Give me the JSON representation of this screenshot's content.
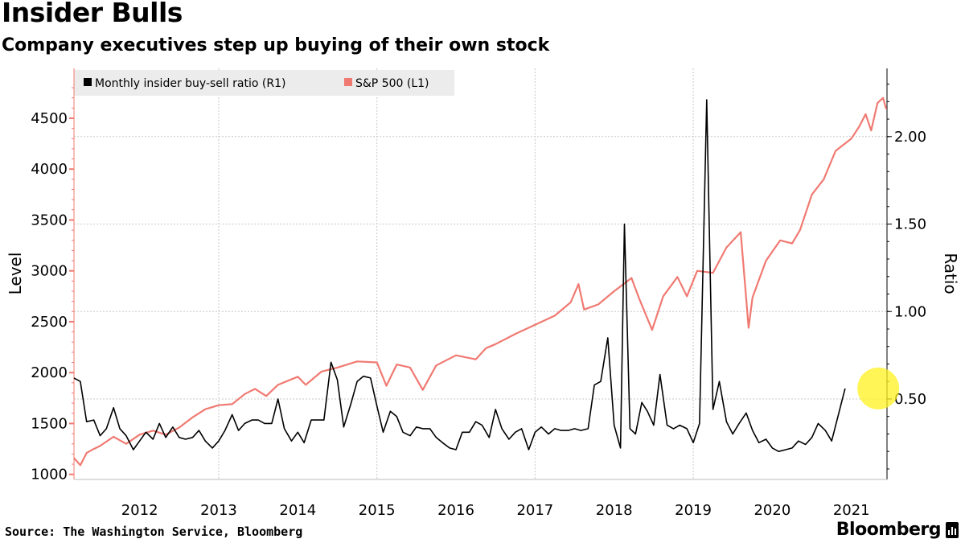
{
  "title": "Insider Bulls",
  "subtitle": "Company executives step up buying of their own stock",
  "source": "Source: The Washington Service, Bloomberg",
  "brand": "Bloomberg",
  "brand_icon": "bloomberg-terminal-icon",
  "colors": {
    "sp500": "#f07a72",
    "ratio": "#000000",
    "grid": "#c8c8c8",
    "highlight": "#fff21e",
    "legend_bg": "#ececec"
  },
  "chart_data": {
    "type": "line",
    "title": "Insider Bulls",
    "ylabel_left": "Level",
    "ylabel_right": "Ratio",
    "yleft_ticks": [
      "1000",
      "1500",
      "2000",
      "2500",
      "3000",
      "3500",
      "4000",
      "4500"
    ],
    "yleft_range": [
      950,
      4990
    ],
    "yright_ticks": [
      "0.50",
      "1.00",
      "1.50",
      "2.00"
    ],
    "yright_range": [
      0.04,
      2.39
    ],
    "x_labels": [
      "2012",
      "2013",
      "2014",
      "2015",
      "2016",
      "2017",
      "2018",
      "2019",
      "2020",
      "2021"
    ],
    "x_range": [
      2011.67,
      2021.95
    ],
    "legend": [
      "Monthly insider buy-sell ratio (R1)",
      "S&P 500 (L1)"
    ],
    "highlight_point": {
      "x": 2021.84,
      "y": 0.56,
      "series": "Monthly insider buy-sell ratio"
    },
    "series": [
      {
        "name": "S&P 500",
        "axis": "left",
        "points": [
          [
            2011.67,
            1160
          ],
          [
            2011.75,
            1090
          ],
          [
            2011.83,
            1210
          ],
          [
            2011.92,
            1250
          ],
          [
            2012.0,
            1280
          ],
          [
            2012.17,
            1370
          ],
          [
            2012.33,
            1300
          ],
          [
            2012.5,
            1390
          ],
          [
            2012.67,
            1430
          ],
          [
            2012.83,
            1390
          ],
          [
            2013.0,
            1460
          ],
          [
            2013.17,
            1560
          ],
          [
            2013.33,
            1640
          ],
          [
            2013.5,
            1680
          ],
          [
            2013.67,
            1690
          ],
          [
            2013.83,
            1790
          ],
          [
            2013.96,
            1840
          ],
          [
            2014.1,
            1770
          ],
          [
            2014.25,
            1880
          ],
          [
            2014.5,
            1960
          ],
          [
            2014.6,
            1880
          ],
          [
            2014.8,
            2010
          ],
          [
            2015.0,
            2050
          ],
          [
            2015.25,
            2110
          ],
          [
            2015.5,
            2100
          ],
          [
            2015.62,
            1870
          ],
          [
            2015.75,
            2080
          ],
          [
            2015.92,
            2050
          ],
          [
            2016.08,
            1830
          ],
          [
            2016.25,
            2070
          ],
          [
            2016.5,
            2170
          ],
          [
            2016.75,
            2130
          ],
          [
            2016.88,
            2240
          ],
          [
            2017.0,
            2280
          ],
          [
            2017.25,
            2380
          ],
          [
            2017.5,
            2470
          ],
          [
            2017.75,
            2560
          ],
          [
            2017.95,
            2690
          ],
          [
            2018.05,
            2870
          ],
          [
            2018.12,
            2620
          ],
          [
            2018.3,
            2670
          ],
          [
            2018.5,
            2800
          ],
          [
            2018.72,
            2930
          ],
          [
            2018.82,
            2720
          ],
          [
            2018.98,
            2420
          ],
          [
            2019.12,
            2750
          ],
          [
            2019.3,
            2940
          ],
          [
            2019.42,
            2750
          ],
          [
            2019.55,
            3000
          ],
          [
            2019.75,
            2980
          ],
          [
            2019.92,
            3230
          ],
          [
            2020.1,
            3380
          ],
          [
            2020.2,
            2440
          ],
          [
            2020.25,
            2740
          ],
          [
            2020.42,
            3100
          ],
          [
            2020.6,
            3300
          ],
          [
            2020.75,
            3270
          ],
          [
            2020.85,
            3400
          ],
          [
            2021.0,
            3750
          ],
          [
            2021.15,
            3900
          ],
          [
            2021.3,
            4180
          ],
          [
            2021.5,
            4300
          ],
          [
            2021.6,
            4420
          ],
          [
            2021.68,
            4540
          ],
          [
            2021.75,
            4380
          ],
          [
            2021.83,
            4650
          ],
          [
            2021.9,
            4700
          ],
          [
            2021.94,
            4590
          ]
        ]
      },
      {
        "name": "Monthly insider buy-sell ratio",
        "axis": "right",
        "points": [
          [
            2011.67,
            0.62
          ],
          [
            2011.75,
            0.6
          ],
          [
            2011.83,
            0.37
          ],
          [
            2011.92,
            0.38
          ],
          [
            2012.0,
            0.29
          ],
          [
            2012.08,
            0.33
          ],
          [
            2012.17,
            0.45
          ],
          [
            2012.25,
            0.33
          ],
          [
            2012.33,
            0.29
          ],
          [
            2012.42,
            0.21
          ],
          [
            2012.5,
            0.26
          ],
          [
            2012.58,
            0.31
          ],
          [
            2012.67,
            0.27
          ],
          [
            2012.75,
            0.36
          ],
          [
            2012.83,
            0.28
          ],
          [
            2012.92,
            0.34
          ],
          [
            2013.0,
            0.28
          ],
          [
            2013.08,
            0.27
          ],
          [
            2013.17,
            0.28
          ],
          [
            2013.25,
            0.32
          ],
          [
            2013.33,
            0.26
          ],
          [
            2013.42,
            0.22
          ],
          [
            2013.5,
            0.26
          ],
          [
            2013.58,
            0.32
          ],
          [
            2013.67,
            0.41
          ],
          [
            2013.75,
            0.32
          ],
          [
            2013.83,
            0.36
          ],
          [
            2013.92,
            0.38
          ],
          [
            2014.0,
            0.38
          ],
          [
            2014.08,
            0.36
          ],
          [
            2014.17,
            0.36
          ],
          [
            2014.25,
            0.5
          ],
          [
            2014.33,
            0.33
          ],
          [
            2014.42,
            0.26
          ],
          [
            2014.5,
            0.31
          ],
          [
            2014.58,
            0.25
          ],
          [
            2014.67,
            0.38
          ],
          [
            2014.75,
            0.38
          ],
          [
            2014.83,
            0.38
          ],
          [
            2014.92,
            0.71
          ],
          [
            2015.0,
            0.61
          ],
          [
            2015.08,
            0.34
          ],
          [
            2015.17,
            0.47
          ],
          [
            2015.25,
            0.6
          ],
          [
            2015.33,
            0.63
          ],
          [
            2015.42,
            0.62
          ],
          [
            2015.5,
            0.46
          ],
          [
            2015.58,
            0.31
          ],
          [
            2015.67,
            0.43
          ],
          [
            2015.75,
            0.4
          ],
          [
            2015.83,
            0.31
          ],
          [
            2015.92,
            0.29
          ],
          [
            2016.0,
            0.34
          ],
          [
            2016.08,
            0.33
          ],
          [
            2016.17,
            0.33
          ],
          [
            2016.25,
            0.28
          ],
          [
            2016.33,
            0.25
          ],
          [
            2016.42,
            0.22
          ],
          [
            2016.5,
            0.21
          ],
          [
            2016.58,
            0.31
          ],
          [
            2016.67,
            0.31
          ],
          [
            2016.75,
            0.37
          ],
          [
            2016.83,
            0.35
          ],
          [
            2016.92,
            0.28
          ],
          [
            2017.0,
            0.44
          ],
          [
            2017.08,
            0.33
          ],
          [
            2017.17,
            0.27
          ],
          [
            2017.25,
            0.31
          ],
          [
            2017.33,
            0.33
          ],
          [
            2017.42,
            0.21
          ],
          [
            2017.5,
            0.31
          ],
          [
            2017.58,
            0.34
          ],
          [
            2017.67,
            0.3
          ],
          [
            2017.75,
            0.33
          ],
          [
            2017.83,
            0.32
          ],
          [
            2017.92,
            0.32
          ],
          [
            2018.0,
            0.33
          ],
          [
            2018.08,
            0.32
          ],
          [
            2018.17,
            0.33
          ],
          [
            2018.25,
            0.58
          ],
          [
            2018.33,
            0.6
          ],
          [
            2018.42,
            0.85
          ],
          [
            2018.5,
            0.35
          ],
          [
            2018.58,
            0.22
          ],
          [
            2018.63,
            1.5
          ],
          [
            2018.7,
            0.33
          ],
          [
            2018.77,
            0.3
          ],
          [
            2018.85,
            0.48
          ],
          [
            2018.92,
            0.43
          ],
          [
            2019.0,
            0.35
          ],
          [
            2019.08,
            0.64
          ],
          [
            2019.17,
            0.35
          ],
          [
            2019.25,
            0.33
          ],
          [
            2019.33,
            0.35
          ],
          [
            2019.42,
            0.33
          ],
          [
            2019.5,
            0.25
          ],
          [
            2019.58,
            0.36
          ],
          [
            2019.67,
            2.21
          ],
          [
            2019.75,
            0.44
          ],
          [
            2019.83,
            0.6
          ],
          [
            2019.92,
            0.37
          ],
          [
            2020.0,
            0.3
          ],
          [
            2020.08,
            0.36
          ],
          [
            2020.17,
            0.42
          ],
          [
            2020.25,
            0.32
          ],
          [
            2020.33,
            0.25
          ],
          [
            2020.42,
            0.27
          ],
          [
            2020.5,
            0.22
          ],
          [
            2020.58,
            0.2
          ],
          [
            2020.67,
            0.21
          ],
          [
            2020.75,
            0.22
          ],
          [
            2020.83,
            0.26
          ],
          [
            2020.92,
            0.24
          ],
          [
            2021.0,
            0.28
          ],
          [
            2021.08,
            0.36
          ],
          [
            2021.17,
            0.32
          ],
          [
            2021.25,
            0.26
          ],
          [
            2021.33,
            0.4
          ],
          [
            2021.42,
            0.56
          ]
        ]
      }
    ]
  }
}
